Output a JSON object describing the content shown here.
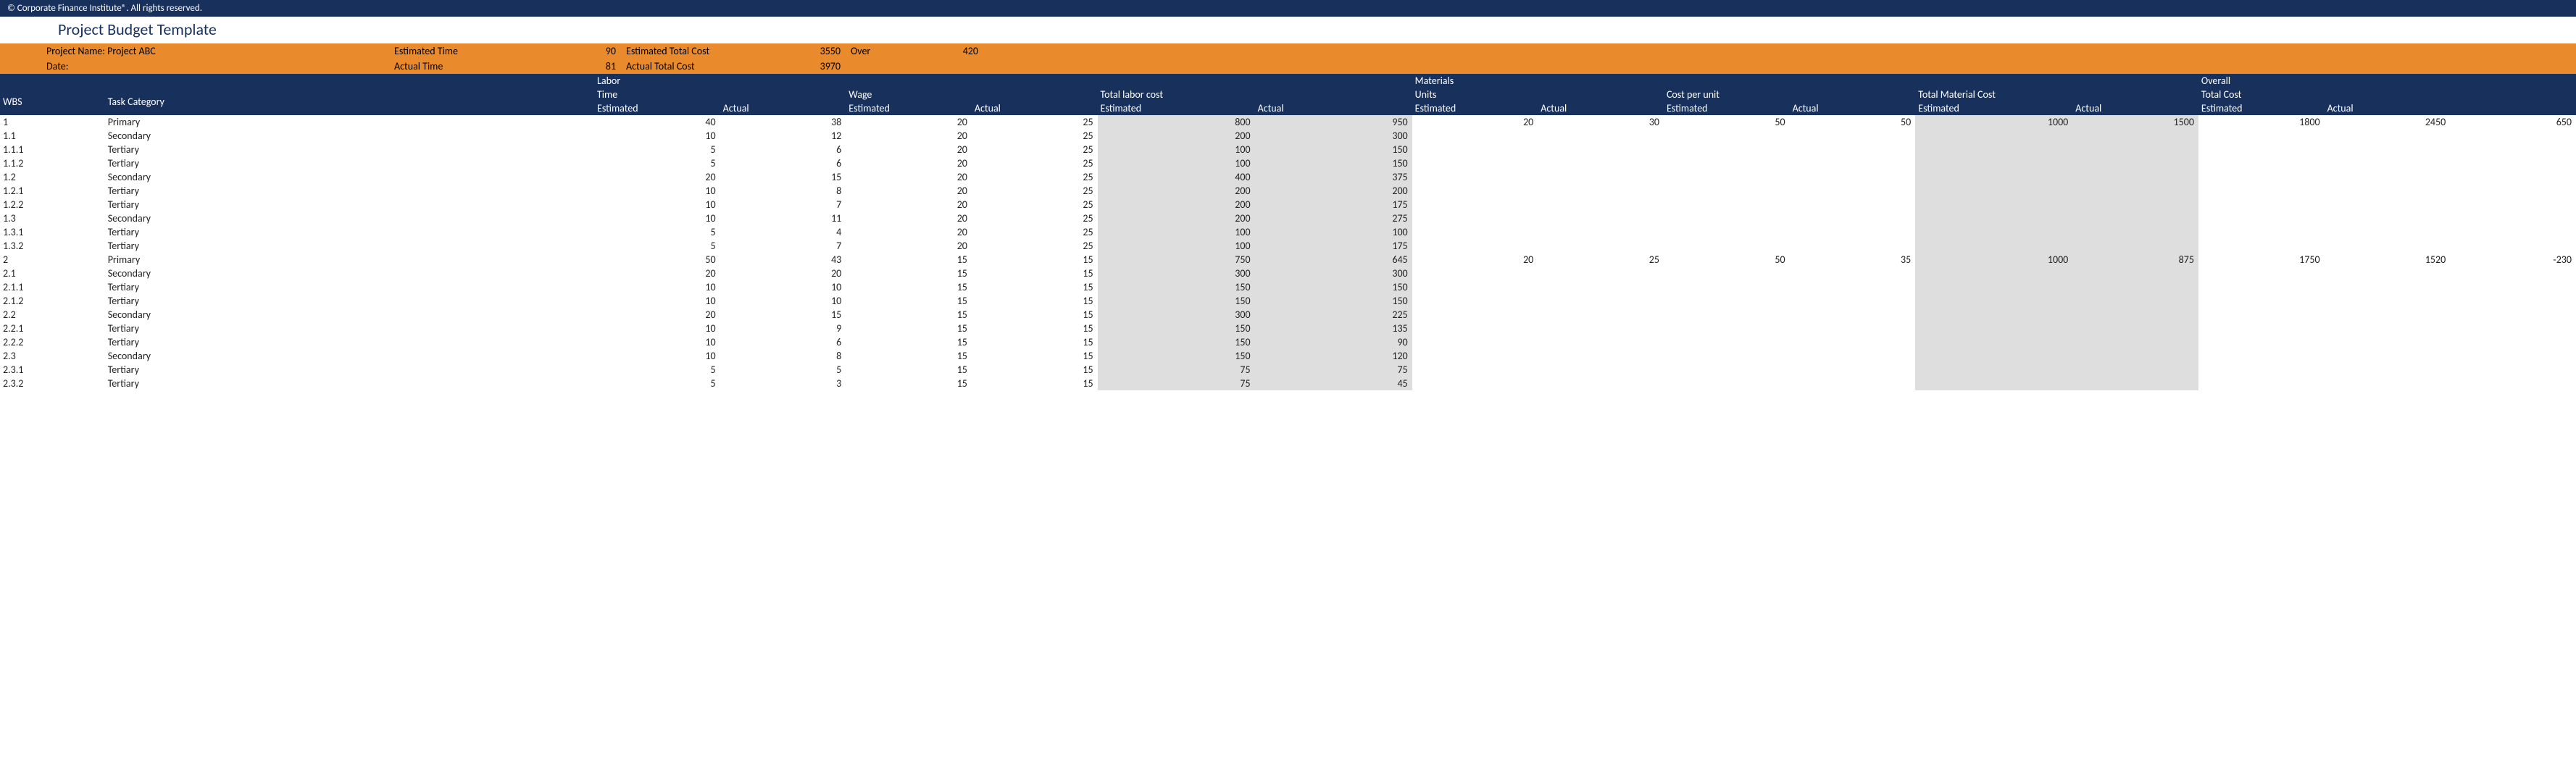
{
  "copyright": "© Corporate Finance Institute®. All rights reserved.",
  "title": "Project Budget Template",
  "summary": {
    "projectNameLabel": "Project Name: Project ABC",
    "dateLabel": "Date:",
    "estTimeLabel": "Estimated Time",
    "actTimeLabel": "Actual Time",
    "estTimeVal": "90",
    "actTimeVal": "81",
    "estCostLabel": "Estimated Total Cost",
    "actCostLabel": "Actual Total Cost",
    "estCostVal": "3550",
    "actCostVal": "3970",
    "overLabel": "Over",
    "overVal": "420"
  },
  "headers": {
    "wbs": "WBS",
    "task": "Task Category",
    "labor": "Labor",
    "time": "Time",
    "wage": "Wage",
    "totalLabor": "Total labor cost",
    "materials": "Materials",
    "units": "Units",
    "costPerUnit": "Cost per unit",
    "totalMaterial": "Total Material Cost",
    "overall": "Overall",
    "totalCost": "Total Cost",
    "estimated": "Estimated",
    "actual": "Actual"
  },
  "rows": [
    {
      "wbs": "1",
      "task": "Primary",
      "te": "40",
      "ta": "38",
      "we": "20",
      "wa": "25",
      "lce": "800",
      "lca": "950",
      "ue": "20",
      "ua": "30",
      "cpe": "50",
      "cpa": "50",
      "mce": "1000",
      "mca": "1500",
      "oce": "1800",
      "oca": "2450",
      "var": "650"
    },
    {
      "wbs": "1.1",
      "task": "Secondary",
      "te": "10",
      "ta": "12",
      "we": "20",
      "wa": "25",
      "lce": "200",
      "lca": "300"
    },
    {
      "wbs": "1.1.1",
      "task": "Tertiary",
      "te": "5",
      "ta": "6",
      "we": "20",
      "wa": "25",
      "lce": "100",
      "lca": "150"
    },
    {
      "wbs": "1.1.2",
      "task": "Tertiary",
      "te": "5",
      "ta": "6",
      "we": "20",
      "wa": "25",
      "lce": "100",
      "lca": "150"
    },
    {
      "wbs": "1.2",
      "task": "Secondary",
      "te": "20",
      "ta": "15",
      "we": "20",
      "wa": "25",
      "lce": "400",
      "lca": "375"
    },
    {
      "wbs": "1.2.1",
      "task": "Tertiary",
      "te": "10",
      "ta": "8",
      "we": "20",
      "wa": "25",
      "lce": "200",
      "lca": "200"
    },
    {
      "wbs": "1.2.2",
      "task": "Tertiary",
      "te": "10",
      "ta": "7",
      "we": "20",
      "wa": "25",
      "lce": "200",
      "lca": "175"
    },
    {
      "wbs": "1.3",
      "task": "Secondary",
      "te": "10",
      "ta": "11",
      "we": "20",
      "wa": "25",
      "lce": "200",
      "lca": "275"
    },
    {
      "wbs": "1.3.1",
      "task": "Tertiary",
      "te": "5",
      "ta": "4",
      "we": "20",
      "wa": "25",
      "lce": "100",
      "lca": "100"
    },
    {
      "wbs": "1.3.2",
      "task": "Tertiary",
      "te": "5",
      "ta": "7",
      "we": "20",
      "wa": "25",
      "lce": "100",
      "lca": "175"
    },
    {
      "wbs": "2",
      "task": "Primary",
      "te": "50",
      "ta": "43",
      "we": "15",
      "wa": "15",
      "lce": "750",
      "lca": "645",
      "ue": "20",
      "ua": "25",
      "cpe": "50",
      "cpa": "35",
      "mce": "1000",
      "mca": "875",
      "oce": "1750",
      "oca": "1520",
      "var": "-230"
    },
    {
      "wbs": "2.1",
      "task": "Secondary",
      "te": "20",
      "ta": "20",
      "we": "15",
      "wa": "15",
      "lce": "300",
      "lca": "300"
    },
    {
      "wbs": "2.1.1",
      "task": "Tertiary",
      "te": "10",
      "ta": "10",
      "we": "15",
      "wa": "15",
      "lce": "150",
      "lca": "150"
    },
    {
      "wbs": "2.1.2",
      "task": "Tertiary",
      "te": "10",
      "ta": "10",
      "we": "15",
      "wa": "15",
      "lce": "150",
      "lca": "150"
    },
    {
      "wbs": "2.2",
      "task": "Secondary",
      "te": "20",
      "ta": "15",
      "we": "15",
      "wa": "15",
      "lce": "300",
      "lca": "225"
    },
    {
      "wbs": "2.2.1",
      "task": "Tertiary",
      "te": "10",
      "ta": "9",
      "we": "15",
      "wa": "15",
      "lce": "150",
      "lca": "135"
    },
    {
      "wbs": "2.2.2",
      "task": "Tertiary",
      "te": "10",
      "ta": "6",
      "we": "15",
      "wa": "15",
      "lce": "150",
      "lca": "90"
    },
    {
      "wbs": "2.3",
      "task": "Secondary",
      "te": "10",
      "ta": "8",
      "we": "15",
      "wa": "15",
      "lce": "150",
      "lca": "120"
    },
    {
      "wbs": "2.3.1",
      "task": "Tertiary",
      "te": "5",
      "ta": "5",
      "we": "15",
      "wa": "15",
      "lce": "75",
      "lca": "75"
    },
    {
      "wbs": "2.3.2",
      "task": "Tertiary",
      "te": "5",
      "ta": "3",
      "we": "15",
      "wa": "15",
      "lce": "75",
      "lca": "45"
    }
  ]
}
